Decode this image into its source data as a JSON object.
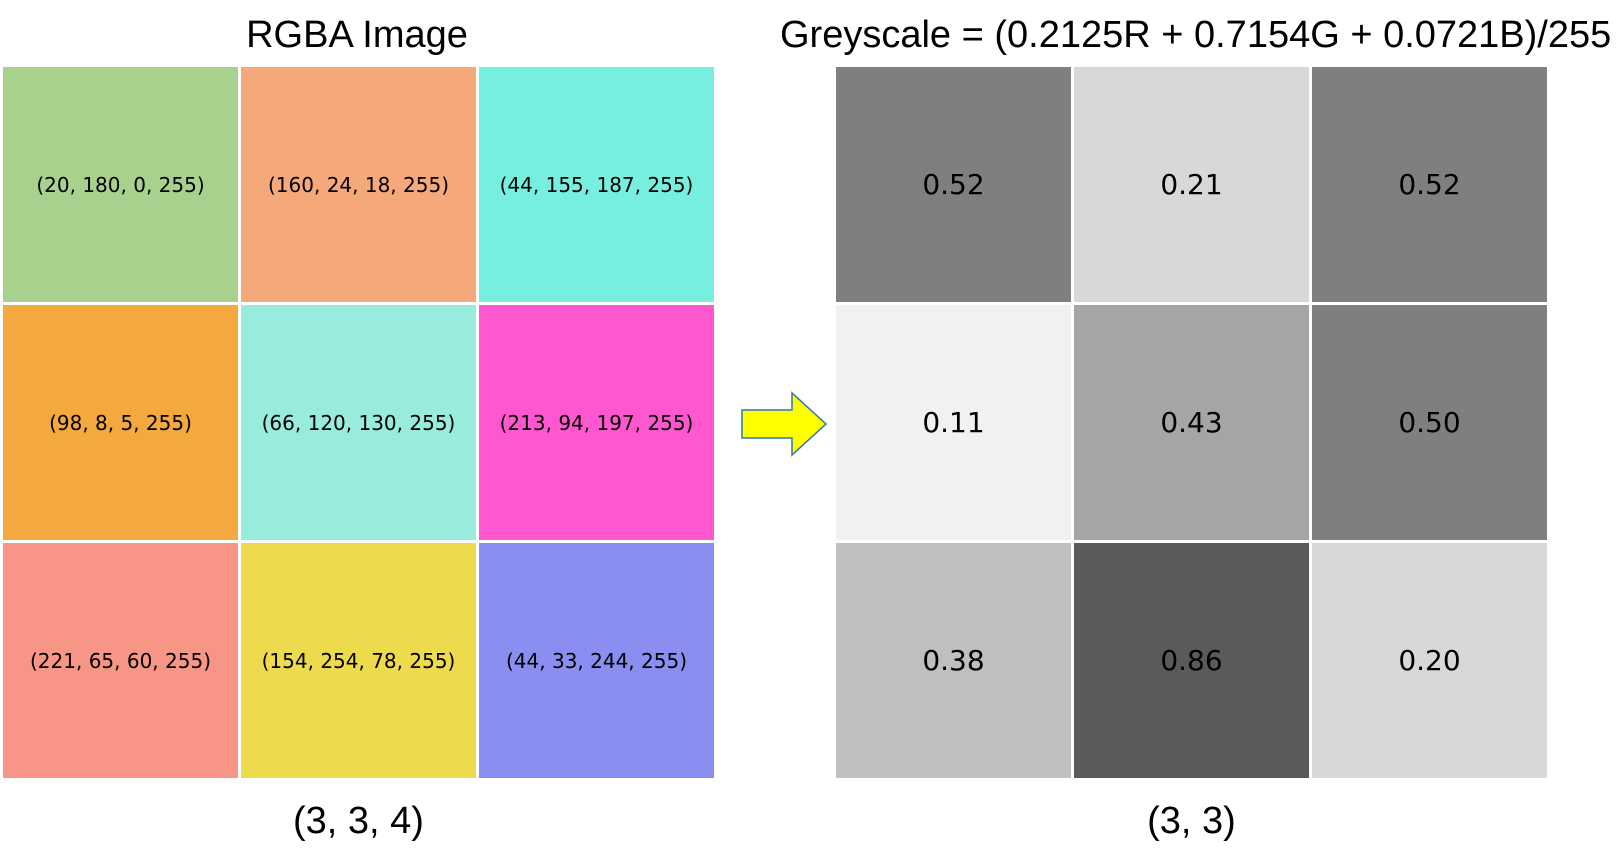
{
  "left": {
    "title": "RGBA Image",
    "shape": "(3, 3, 4)",
    "cells": [
      {
        "label": "(20, 180, 0, 255)",
        "color": "#a9d18e"
      },
      {
        "label": "(160, 24, 18, 255)",
        "color": "#f5a87a"
      },
      {
        "label": "(44, 155, 187, 255)",
        "color": "#76efdf"
      },
      {
        "label": "(98, 8, 5, 255)",
        "color": "#f4a93e"
      },
      {
        "label": "(66, 120, 130, 255)",
        "color": "#98ecdd"
      },
      {
        "label": "(213, 94, 197, 255)",
        "color": "#ff57d0"
      },
      {
        "label": "(221, 65, 60, 255)",
        "color": "#f79586"
      },
      {
        "label": "(154, 254, 78, 255)",
        "color": "#eedb4d"
      },
      {
        "label": "(44, 33, 244, 255)",
        "color": "#8a8ef0"
      }
    ]
  },
  "right": {
    "title": "Greyscale = (0.2125R + 0.7154G + 0.0721B)/255",
    "shape": "(3, 3)",
    "cells": [
      {
        "label": "0.52",
        "color": "#7f7f7f"
      },
      {
        "label": "0.21",
        "color": "#d8d8d8"
      },
      {
        "label": "0.52",
        "color": "#7f7f7f"
      },
      {
        "label": "0.11",
        "color": "#f1f1f1"
      },
      {
        "label": "0.43",
        "color": "#a5a5a5"
      },
      {
        "label": "0.50",
        "color": "#7f7f7f"
      },
      {
        "label": "0.38",
        "color": "#bfbfbf"
      },
      {
        "label": "0.86",
        "color": "#5a5a5a"
      },
      {
        "label": "0.20",
        "color": "#d8d8d8"
      }
    ]
  },
  "arrow": {
    "fill": "#ffff00",
    "stroke": "#2e75b6"
  }
}
